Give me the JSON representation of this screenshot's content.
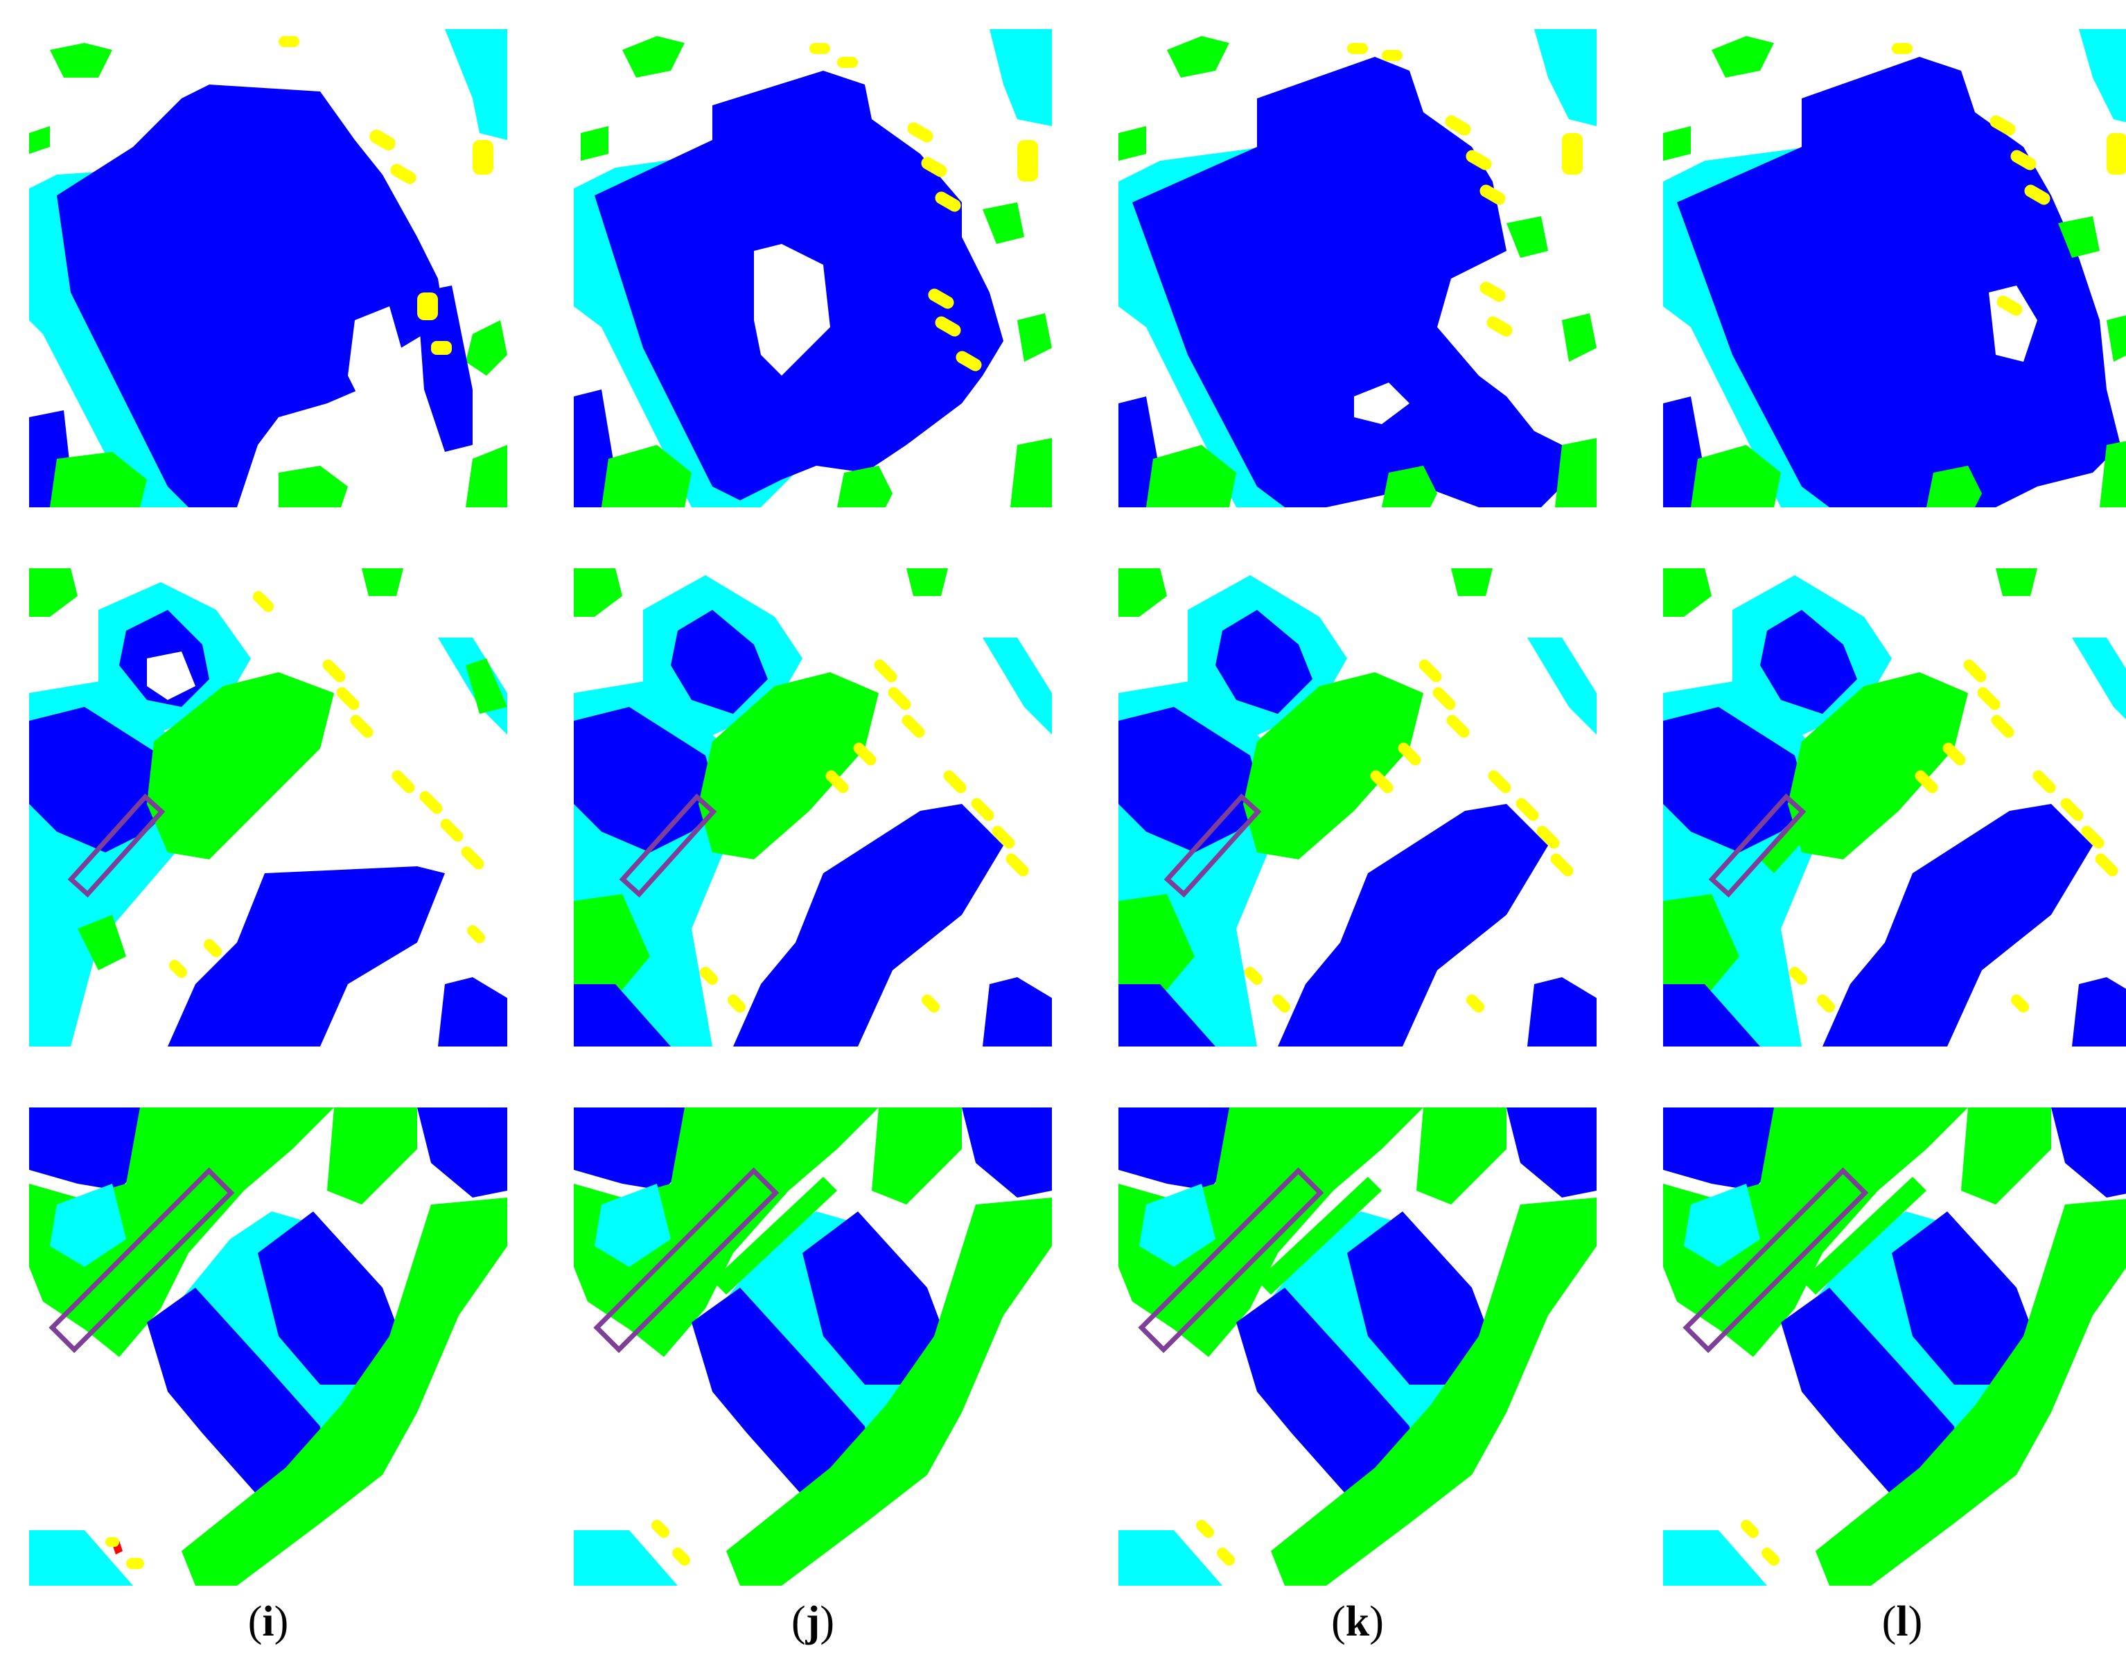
{
  "figure": {
    "columns": [
      {
        "label": "i"
      },
      {
        "label": "j"
      },
      {
        "label": "k"
      },
      {
        "label": "l"
      }
    ],
    "rows": 3,
    "legend_colors": {
      "building": "#0000FF",
      "low_vegetation": "#00FFFF",
      "tree": "#00FF00",
      "car": "#FFFF00",
      "clutter": "#FF0000",
      "impervious_surface": "#FFFFFF"
    },
    "highlight_box_color": "#7E3F98"
  }
}
